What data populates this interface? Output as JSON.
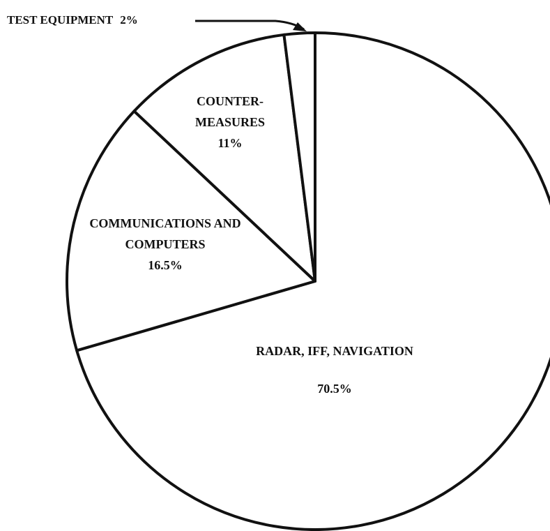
{
  "chart_data": {
    "type": "pie",
    "categories": [
      "RADAR, IFF, NAVIGATION",
      "COMMUNICATIONS AND COMPUTERS",
      "COUNTER-MEASURES",
      "TEST EQUIPMENT"
    ],
    "values": [
      70.5,
      16.5,
      11,
      2
    ],
    "value_labels": [
      "70.5%",
      "16.5%",
      "11%",
      "2%"
    ],
    "color": "#ffffff"
  }
}
